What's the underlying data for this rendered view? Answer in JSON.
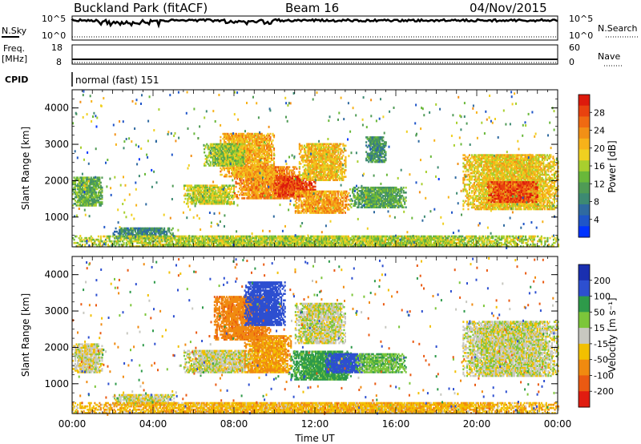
{
  "header": {
    "station": "Buckland Park (fitACF)",
    "beam": "Beam 16",
    "date": "04/Nov/2015"
  },
  "panels": {
    "nsky": {
      "label": "N.Sky",
      "ticks": [
        "10^5",
        "10^0"
      ],
      "right_label": "N.Search",
      "right_ticks": [
        "10^5",
        "10^0"
      ]
    },
    "freq": {
      "label_top": "Freq.",
      "label_bottom": "[MHz]",
      "ticks": [
        "18",
        "8"
      ],
      "right_label": "Nave",
      "right_ticks": [
        "60",
        "0"
      ]
    },
    "cpid": {
      "label": "CPID",
      "value": "normal (fast) 151"
    }
  },
  "chart_data": [
    {
      "type": "heatmap",
      "name": "power",
      "ylabel": "Slant Range [km]",
      "y_ticks": [
        1000,
        2000,
        3000,
        4000
      ],
      "ylim": [
        180,
        4500
      ],
      "x_ticks": [
        "00:00",
        "04:00",
        "08:00",
        "12:00",
        "16:00",
        "20:00",
        "00:00"
      ],
      "xlim_hours": [
        0,
        24
      ],
      "colorbar": {
        "label": "Power [dB]",
        "ticks": [
          4,
          8,
          12,
          16,
          20,
          24,
          28
        ],
        "range": [
          0,
          30
        ]
      },
      "regions": [
        {
          "t": [
            5.5,
            8.0
          ],
          "r": [
            1350,
            1850
          ],
          "val": 16
        },
        {
          "t": [
            8.0,
            11.2
          ],
          "r": [
            1500,
            2400
          ],
          "val": 22
        },
        {
          "t": [
            10.0,
            12.0
          ],
          "r": [
            1550,
            2100
          ],
          "val": 27
        },
        {
          "t": [
            7.3,
            10.0
          ],
          "r": [
            2100,
            3300
          ],
          "val": 20
        },
        {
          "t": [
            6.5,
            8.5
          ],
          "r": [
            2400,
            3000
          ],
          "val": 14
        },
        {
          "t": [
            11.0,
            13.7
          ],
          "r": [
            1100,
            1700
          ],
          "val": 21
        },
        {
          "t": [
            11.2,
            13.5
          ],
          "r": [
            2000,
            3000
          ],
          "val": 19
        },
        {
          "t": [
            13.7,
            16.5
          ],
          "r": [
            1250,
            1800
          ],
          "val": 11
        },
        {
          "t": [
            14.5,
            15.5
          ],
          "r": [
            2500,
            3200
          ],
          "val": 9
        },
        {
          "t": [
            19.3,
            24.0
          ],
          "r": [
            1200,
            2700
          ],
          "val": 18
        },
        {
          "t": [
            20.5,
            23.0
          ],
          "r": [
            1400,
            1950
          ],
          "val": 26
        },
        {
          "t": [
            0.0,
            1.5
          ],
          "r": [
            1300,
            2100
          ],
          "val": 12
        },
        {
          "t": [
            2.0,
            5.0
          ],
          "r": [
            400,
            700
          ],
          "val": 8
        },
        {
          "t": [
            0.0,
            24.0
          ],
          "r": [
            180,
            480
          ],
          "val": 15
        }
      ]
    },
    {
      "type": "heatmap",
      "name": "velocity",
      "ylabel": "Slant Range [km]",
      "y_ticks": [
        1000,
        2000,
        3000,
        4000
      ],
      "ylim": [
        180,
        4500
      ],
      "x_ticks": [
        "00:00",
        "04:00",
        "08:00",
        "12:00",
        "16:00",
        "20:00",
        "00:00"
      ],
      "xlim_hours": [
        0,
        24
      ],
      "xlabel": "Time UT",
      "colorbar": {
        "label": "Velocity [m s⁻¹]",
        "ticks": [
          200,
          100,
          50,
          15,
          -15,
          -50,
          -100,
          -200
        ],
        "range": [
          -250,
          250
        ]
      },
      "regions": [
        {
          "t": [
            5.5,
            9.0
          ],
          "r": [
            1300,
            1900
          ],
          "val": 0
        },
        {
          "t": [
            8.5,
            10.8
          ],
          "r": [
            1300,
            2300
          ],
          "val": -60
        },
        {
          "t": [
            7.0,
            9.8
          ],
          "r": [
            2200,
            3400
          ],
          "val": -80
        },
        {
          "t": [
            8.5,
            10.5
          ],
          "r": [
            2600,
            3800
          ],
          "val": 150
        },
        {
          "t": [
            10.8,
            13.8
          ],
          "r": [
            1100,
            1900
          ],
          "val": 70
        },
        {
          "t": [
            12.5,
            14.5
          ],
          "r": [
            1300,
            1800
          ],
          "val": 130
        },
        {
          "t": [
            11.0,
            13.5
          ],
          "r": [
            2100,
            3200
          ],
          "val": 0
        },
        {
          "t": [
            14.0,
            16.5
          ],
          "r": [
            1300,
            1800
          ],
          "val": 40
        },
        {
          "t": [
            19.3,
            24.0
          ],
          "r": [
            1200,
            2700
          ],
          "val": 0
        },
        {
          "t": [
            0.0,
            1.5
          ],
          "r": [
            1300,
            2100
          ],
          "val": -5
        },
        {
          "t": [
            2.0,
            5.0
          ],
          "r": [
            400,
            700
          ],
          "val": 0
        },
        {
          "t": [
            0.0,
            24.0
          ],
          "r": [
            180,
            480
          ],
          "val": -40
        }
      ]
    }
  ]
}
